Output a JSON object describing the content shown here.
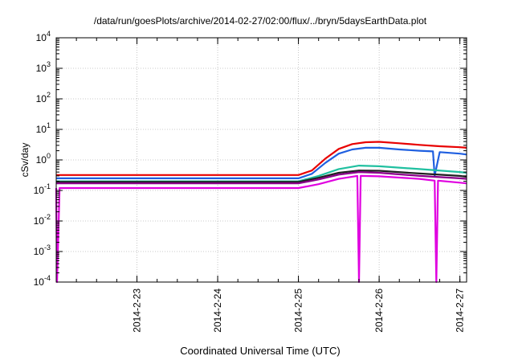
{
  "chart_data": {
    "type": "line",
    "title": "/data/run/goesPlots/archive/2014-02-27/02:00/flux/../bryn/5daysEarthData.plot",
    "xlabel": "Coordinated Universal Time (UTC)",
    "ylabel": "cSv/day",
    "yscale": "log",
    "ylim": [
      0.0001,
      10000
    ],
    "xlim": [
      "2014-02-22 00:00",
      "2014-02-27 02:00"
    ],
    "grid": true,
    "legend": "none",
    "y_ticks": [
      {
        "base": "10",
        "exp": "-4",
        "value": 0.0001
      },
      {
        "base": "10",
        "exp": "-3",
        "value": 0.001
      },
      {
        "base": "10",
        "exp": "-2",
        "value": 0.01
      },
      {
        "base": "10",
        "exp": "-1",
        "value": 0.1
      },
      {
        "base": "10",
        "exp": "0",
        "value": 1
      },
      {
        "base": "10",
        "exp": "1",
        "value": 10
      },
      {
        "base": "10",
        "exp": "2",
        "value": 100
      },
      {
        "base": "10",
        "exp": "3",
        "value": 1000
      },
      {
        "base": "10",
        "exp": "4",
        "value": 10000
      }
    ],
    "x_ticks": [
      {
        "label": "2014-2-23",
        "value": "2014-02-23"
      },
      {
        "label": "2014-2-24",
        "value": "2014-02-24"
      },
      {
        "label": "2014-2-25",
        "value": "2014-02-25"
      },
      {
        "label": "2014-2-26",
        "value": "2014-02-26"
      },
      {
        "label": "2014-2-27",
        "value": "2014-02-27"
      }
    ],
    "series": [
      {
        "color": "#e80000",
        "x": [
          "2014-02-22 00:00",
          "2014-02-25 00:00",
          "2014-02-25 04:00",
          "2014-02-25 08:00",
          "2014-02-25 12:00",
          "2014-02-25 16:00",
          "2014-02-25 20:00",
          "2014-02-26 00:00",
          "2014-02-26 06:00",
          "2014-02-26 12:00",
          "2014-02-26 18:00",
          "2014-02-27 00:00",
          "2014-02-27 02:00"
        ],
        "values": [
          0.32,
          0.32,
          0.45,
          1.1,
          2.3,
          3.3,
          3.8,
          3.9,
          3.5,
          3.1,
          2.8,
          2.6,
          2.5
        ]
      },
      {
        "color": "#1f5fe0",
        "x": [
          "2014-02-22 00:00",
          "2014-02-25 00:00",
          "2014-02-25 04:00",
          "2014-02-25 08:00",
          "2014-02-25 12:00",
          "2014-02-25 16:00",
          "2014-02-25 20:00",
          "2014-02-26 00:00",
          "2014-02-26 06:00",
          "2014-02-26 12:00",
          "2014-02-26 16:00",
          "2014-02-26 16:30",
          "2014-02-26 18:00",
          "2014-02-27 00:00",
          "2014-02-27 02:00"
        ],
        "values": [
          0.25,
          0.25,
          0.35,
          0.8,
          1.6,
          2.2,
          2.5,
          2.5,
          2.2,
          2.0,
          1.9,
          0.3,
          1.8,
          1.6,
          1.5
        ]
      },
      {
        "color": "#20c0a0",
        "x": [
          "2014-02-22 00:00",
          "2014-02-25 00:00",
          "2014-02-25 06:00",
          "2014-02-25 12:00",
          "2014-02-25 18:00",
          "2014-02-26 00:00",
          "2014-02-26 12:00",
          "2014-02-27 00:00",
          "2014-02-27 02:00"
        ],
        "values": [
          0.2,
          0.2,
          0.3,
          0.5,
          0.65,
          0.62,
          0.5,
          0.4,
          0.38
        ]
      },
      {
        "color": "#202020",
        "x": [
          "2014-02-22 00:00",
          "2014-02-25 00:00",
          "2014-02-25 06:00",
          "2014-02-25 12:00",
          "2014-02-25 18:00",
          "2014-02-26 00:00",
          "2014-02-26 12:00",
          "2014-02-27 00:00",
          "2014-02-27 02:00"
        ],
        "values": [
          0.19,
          0.19,
          0.26,
          0.38,
          0.45,
          0.44,
          0.36,
          0.3,
          0.28
        ]
      },
      {
        "color": "#8b008b",
        "x": [
          "2014-02-22 00:00",
          "2014-02-25 00:00",
          "2014-02-25 06:00",
          "2014-02-25 12:00",
          "2014-02-25 18:00",
          "2014-02-26 00:00",
          "2014-02-26 12:00",
          "2014-02-27 00:00",
          "2014-02-27 02:00"
        ],
        "values": [
          0.17,
          0.17,
          0.23,
          0.33,
          0.4,
          0.38,
          0.3,
          0.25,
          0.24
        ]
      },
      {
        "color": "#e000e0",
        "x": [
          "2014-02-22 00:00",
          "2014-02-22 00:15",
          "2014-02-22 01:00",
          "2014-02-25 00:00",
          "2014-02-25 06:00",
          "2014-02-25 12:00",
          "2014-02-25 17:30",
          "2014-02-25 18:00",
          "2014-02-25 18:30",
          "2014-02-26 00:00",
          "2014-02-26 12:00",
          "2014-02-26 16:30",
          "2014-02-26 17:00",
          "2014-02-26 17:30",
          "2014-02-27 00:00",
          "2014-02-27 02:00"
        ],
        "values": [
          0.12,
          0.0001,
          0.12,
          0.12,
          0.16,
          0.24,
          0.3,
          0.0001,
          0.3,
          0.29,
          0.24,
          0.21,
          0.0001,
          0.21,
          0.18,
          0.17
        ]
      }
    ]
  }
}
